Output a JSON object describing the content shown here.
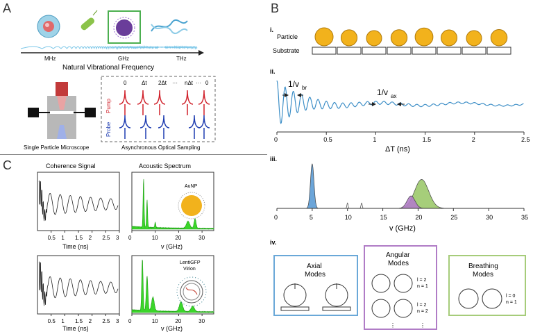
{
  "panels": {
    "a": "A",
    "b": "B",
    "c": "C"
  },
  "panel_a": {
    "freq_ticks": [
      "MHz",
      "GHz",
      "THz"
    ],
    "axis_label": "Natural Vibrational Frequency",
    "microscope_caption": "Single Particle Microscope",
    "sampling_caption": "Asynchronous Optical Sampling",
    "pump_label": "Pump",
    "probe_label": "Probe",
    "delay_labels": [
      "0",
      "Δt",
      "2Δt",
      "···",
      "nΔt",
      "···",
      "0"
    ],
    "colors": {
      "pump": "#d0202a",
      "probe": "#1d3bb0",
      "highlight": "#4caf50"
    }
  },
  "panel_b_i": {
    "roman": "i.",
    "particle_label": "Particle",
    "substrate_label": "Substrate",
    "particle_color": "#f2b21c"
  },
  "panel_b_ii": {
    "roman": "ii.",
    "annot_br": "1/v",
    "annot_br_sub": "br",
    "annot_ax": "1/v",
    "annot_ax_sub": "ax",
    "xlabel": "ΔT  (ns)",
    "xticks": [
      "0",
      "0.5",
      "1",
      "1.5",
      "2",
      "2.5"
    ],
    "line_color": "#3e8fc7"
  },
  "panel_b_iii": {
    "roman": "iii.",
    "xlabel": "v (GHz)",
    "xticks": [
      "0",
      "5",
      "10",
      "15",
      "20",
      "25",
      "30",
      "35"
    ],
    "colors": {
      "blue": "#5b9bd5",
      "purple": "#b27dc9",
      "green": "#9cc96b"
    }
  },
  "panel_b_iv": {
    "roman": "iv.",
    "axial": {
      "title1": "Axial",
      "title2": "Modes",
      "color": "#6aa8d8"
    },
    "angular": {
      "title1": "Angular",
      "title2": "Modes",
      "color": "#b07cc6",
      "ln1": [
        "l = 2",
        "n = 1"
      ],
      "ln2": [
        "l = 2",
        "n = 2"
      ],
      "dots": [
        "⋮",
        "⋮"
      ]
    },
    "breathing": {
      "title1": "Breathing",
      "title2": "Modes",
      "color": "#a6cc7a",
      "ln": [
        "l = 0",
        "n = 1"
      ]
    },
    "axis_z": "z"
  },
  "panel_c": {
    "coherence_title": "Coherence Signal",
    "spectrum_title": "Acoustic Spectrum",
    "time_label": "Time (ns)",
    "freq_label": "v (GHz)",
    "time_ticks": [
      "0.5",
      "1",
      "1.5",
      "2",
      "2.5",
      "3"
    ],
    "freq_ticks": [
      "0",
      "10",
      "20",
      "30"
    ],
    "aunp_label": "AuNP",
    "virion_label1": "LentiGFP",
    "virion_label2": "Virion",
    "spectrum_color": "#3bd62a"
  },
  "chart_data": [
    {
      "type": "line",
      "xlabel": "ΔT  (ns)",
      "xlim": [
        0,
        2.5
      ],
      "x": [
        0,
        0.05,
        0.1,
        0.15,
        0.2,
        0.3,
        0.5,
        1.0,
        1.5,
        2.0,
        2.5
      ],
      "series": [
        {
          "values": [
            0.95,
            0.2,
            0.7,
            0.35,
            0.6,
            0.5,
            0.45,
            0.5,
            0.48,
            0.5,
            0.5
          ]
        }
      ]
    },
    {
      "type": "area",
      "xlabel": "v (GHz)",
      "xlim": [
        0,
        35
      ],
      "series": [
        {
          "peak_GHz": 5,
          "relative_height": 1.0
        },
        {
          "peak_GHz": 10,
          "relative_height": 0.12
        },
        {
          "peak_GHz": 12,
          "relative_height": 0.12
        },
        {
          "peak_GHz": 19,
          "relative_height": 0.28
        },
        {
          "peak_GHz": 20.5,
          "relative_height": 0.65
        }
      ]
    }
  ]
}
